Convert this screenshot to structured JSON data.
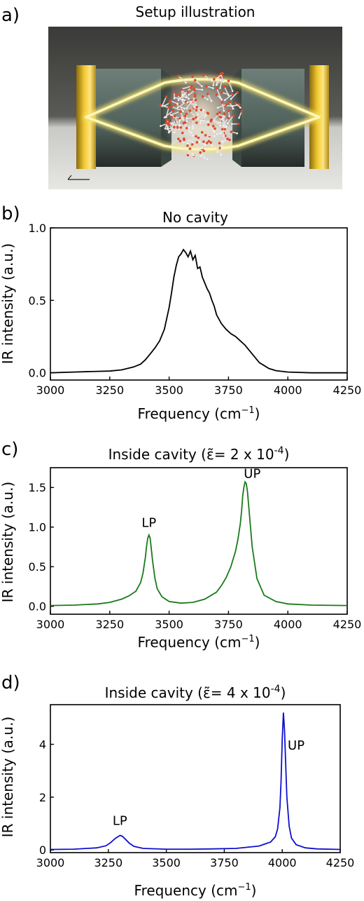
{
  "panels": {
    "a": {
      "letter": "a)",
      "title": "Setup illustration"
    },
    "b": {
      "letter": "b)"
    },
    "c": {
      "letter": "c)"
    },
    "d": {
      "letter": "d)"
    }
  },
  "chart_data": [
    {
      "id": "b",
      "type": "line",
      "title": "No cavity",
      "xlabel": "Frequency (cm⁻¹)",
      "ylabel": "IR intensity (a.u.)",
      "xlim": [
        3000,
        4250
      ],
      "ylim": [
        -0.05,
        1.0
      ],
      "xticks": [
        3000,
        3250,
        3500,
        3750,
        4000,
        4250
      ],
      "yticks": [
        0.0,
        0.5,
        1.0
      ],
      "ytick_labels": [
        "0.0",
        "0.5",
        "1.0"
      ],
      "grid": false,
      "color": "#000000",
      "series": [
        {
          "x": [
            3000,
            3100,
            3200,
            3250,
            3300,
            3350,
            3380,
            3400,
            3420,
            3440,
            3460,
            3480,
            3500,
            3510,
            3520,
            3530,
            3540,
            3550,
            3560,
            3570,
            3580,
            3590,
            3600,
            3610,
            3620,
            3630,
            3640,
            3650,
            3660,
            3670,
            3680,
            3690,
            3700,
            3720,
            3740,
            3760,
            3780,
            3800,
            3820,
            3840,
            3860,
            3880,
            3900,
            3920,
            3950,
            4000,
            4100,
            4250
          ],
          "y": [
            0.0,
            0.005,
            0.01,
            0.012,
            0.02,
            0.04,
            0.06,
            0.09,
            0.13,
            0.17,
            0.22,
            0.3,
            0.45,
            0.55,
            0.66,
            0.74,
            0.8,
            0.82,
            0.85,
            0.83,
            0.8,
            0.84,
            0.78,
            0.81,
            0.72,
            0.73,
            0.66,
            0.62,
            0.58,
            0.55,
            0.5,
            0.46,
            0.4,
            0.34,
            0.3,
            0.27,
            0.25,
            0.22,
            0.19,
            0.15,
            0.11,
            0.07,
            0.05,
            0.03,
            0.015,
            0.005,
            0.0,
            0.0
          ]
        }
      ]
    },
    {
      "id": "c",
      "type": "line",
      "title": "Inside cavity (ε̃= 2 x 10⁻⁴)",
      "xlabel": "Frequency (cm⁻¹)",
      "ylabel": "IR intensity (a.u.)",
      "xlim": [
        3000,
        4250
      ],
      "ylim": [
        -0.1,
        1.75
      ],
      "xticks": [
        3000,
        3250,
        3500,
        3750,
        4000,
        4250
      ],
      "yticks": [
        0.0,
        0.5,
        1.0,
        1.5
      ],
      "ytick_labels": [
        "0.0",
        "0.5",
        "1.0",
        "1.5"
      ],
      "grid": false,
      "color": "#1a7a1a",
      "annotations": [
        {
          "text": "LP",
          "x": 3415,
          "y": 1.0
        },
        {
          "text": "UP",
          "x": 3850,
          "y": 1.62
        }
      ],
      "series": [
        {
          "x": [
            3000,
            3100,
            3200,
            3250,
            3300,
            3330,
            3360,
            3380,
            3390,
            3400,
            3405,
            3410,
            3415,
            3420,
            3425,
            3430,
            3440,
            3450,
            3470,
            3500,
            3550,
            3600,
            3650,
            3700,
            3720,
            3740,
            3760,
            3770,
            3780,
            3790,
            3800,
            3805,
            3810,
            3815,
            3820,
            3825,
            3830,
            3840,
            3850,
            3870,
            3900,
            3950,
            4000,
            4100,
            4250
          ],
          "y": [
            0.01,
            0.015,
            0.03,
            0.05,
            0.09,
            0.13,
            0.19,
            0.3,
            0.42,
            0.62,
            0.76,
            0.86,
            0.9,
            0.86,
            0.72,
            0.58,
            0.36,
            0.22,
            0.12,
            0.06,
            0.04,
            0.05,
            0.09,
            0.18,
            0.26,
            0.36,
            0.5,
            0.6,
            0.7,
            0.85,
            1.05,
            1.2,
            1.4,
            1.5,
            1.57,
            1.55,
            1.45,
            1.1,
            0.75,
            0.35,
            0.14,
            0.06,
            0.03,
            0.015,
            0.01
          ]
        }
      ]
    },
    {
      "id": "d",
      "type": "line",
      "title": "Inside cavity (ε̃= 4 x 10⁻⁴)",
      "xlabel": "Frequency (cm⁻¹)",
      "ylabel": "IR intensity (a.u.)",
      "xlim": [
        3000,
        4250
      ],
      "ylim": [
        -0.1,
        5.5
      ],
      "xticks": [
        3000,
        3250,
        3500,
        3750,
        4000,
        4250
      ],
      "yticks": [
        0,
        2,
        4
      ],
      "ytick_labels": [
        "0",
        "2",
        "4"
      ],
      "grid": false,
      "color": "#1010cc",
      "annotations": [
        {
          "text": "LP",
          "x": 3300,
          "y": 0.95
        },
        {
          "text": "UP",
          "x": 4060,
          "y": 3.8
        }
      ],
      "series": [
        {
          "x": [
            3000,
            3100,
            3200,
            3240,
            3260,
            3280,
            3300,
            3310,
            3320,
            3340,
            3360,
            3400,
            3500,
            3600,
            3700,
            3800,
            3900,
            3950,
            3970,
            3980,
            3990,
            3995,
            4000,
            4005,
            4010,
            4015,
            4020,
            4030,
            4040,
            4060,
            4100,
            4150,
            4250
          ],
          "y": [
            0.02,
            0.03,
            0.08,
            0.16,
            0.28,
            0.44,
            0.55,
            0.52,
            0.44,
            0.26,
            0.14,
            0.06,
            0.03,
            0.03,
            0.04,
            0.06,
            0.15,
            0.3,
            0.5,
            0.8,
            1.6,
            2.6,
            4.2,
            5.2,
            4.5,
            3.2,
            2.0,
            0.9,
            0.45,
            0.2,
            0.08,
            0.04,
            0.02
          ]
        }
      ]
    }
  ]
}
